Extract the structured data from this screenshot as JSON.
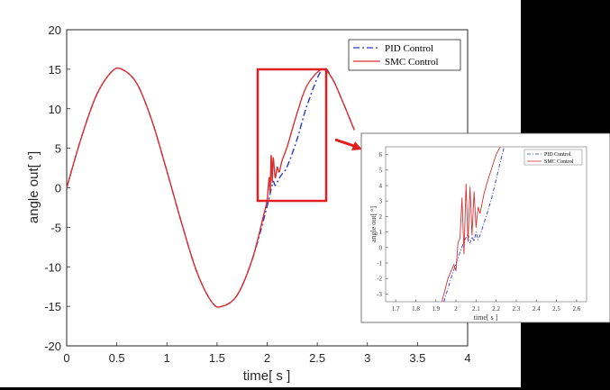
{
  "colors": {
    "pid": "#2b37c9",
    "smc": "#d93030",
    "highlight": "#e02020",
    "axis": "#262626"
  },
  "chart_data": [
    {
      "type": "line",
      "title": "",
      "xlabel": "time[ s ]",
      "ylabel": "angle out[ °]",
      "xlim": [
        0,
        4
      ],
      "ylim": [
        -20,
        20
      ],
      "xticks": [
        "0",
        "0.5",
        "1",
        "1.5",
        "2",
        "2.5",
        "3",
        "3.5",
        "4"
      ],
      "yticks": [
        "-20",
        "-15",
        "-10",
        "-5",
        "0",
        "5",
        "10",
        "15",
        "20"
      ],
      "legend_placement": "top-right",
      "series": [
        {
          "name": "PID Control",
          "style": "dash-dot",
          "color": "#2b37c9",
          "x": [
            0,
            0.15,
            0.3,
            0.45,
            0.55,
            0.7,
            0.85,
            1.0,
            1.15,
            1.3,
            1.45,
            1.55,
            1.7,
            1.85,
            1.98,
            2.04,
            2.06,
            2.08,
            2.1,
            2.12,
            2.14,
            2.2,
            2.3,
            2.4,
            2.55,
            2.65,
            2.75,
            2.87
          ],
          "y": [
            0,
            6.5,
            11.8,
            14.7,
            15,
            13.2,
            8.5,
            2.1,
            -4.6,
            -10.7,
            -14.5,
            -15,
            -13.6,
            -9.1,
            -3.3,
            -0.2,
            0.8,
            0.3,
            0.7,
            1.2,
            1.6,
            2.7,
            6.2,
            10.5,
            15,
            13.8,
            11.0,
            7.3
          ]
        },
        {
          "name": "SMC Control",
          "style": "solid",
          "color": "#d93030",
          "x": [
            0,
            0.15,
            0.3,
            0.45,
            0.55,
            0.7,
            0.85,
            1.0,
            1.15,
            1.3,
            1.45,
            1.55,
            1.7,
            1.85,
            1.97,
            2.0,
            2.02,
            2.03,
            2.04,
            2.05,
            2.06,
            2.08,
            2.1,
            2.12,
            2.15,
            2.2,
            2.3,
            2.4,
            2.55,
            2.65,
            2.75,
            2.87
          ],
          "y": [
            0,
            6.5,
            11.8,
            14.7,
            15,
            13.2,
            8.5,
            2.1,
            -4.6,
            -10.7,
            -14.5,
            -15,
            -13.6,
            -9.1,
            -3.2,
            -1.5,
            1.3,
            -0.5,
            4.1,
            0.7,
            3.8,
            1.3,
            2.6,
            2.0,
            3.5,
            5.2,
            9.5,
            13.0,
            15,
            13.8,
            11.0,
            7.3
          ]
        }
      ]
    },
    {
      "type": "line",
      "title": "",
      "xlabel": "time[ s ]",
      "ylabel": "angle out[ °]",
      "xlim": [
        1.65,
        2.65
      ],
      "ylim": [
        -3.5,
        6.5
      ],
      "xticks": [
        "1.7",
        "1.8",
        "1.9",
        "2",
        "2.1",
        "2.2",
        "2.3",
        "2.4",
        "2.5",
        "2.6"
      ],
      "yticks": [
        "-3",
        "-2",
        "-1",
        "0",
        "1",
        "2",
        "3",
        "4",
        "5",
        "6"
      ],
      "legend_placement": "top-right",
      "series": [
        {
          "name": "PID Control",
          "style": "dash-dot",
          "color": "#2b37c9",
          "x": [
            1.94,
            1.98,
            2.02,
            2.04,
            2.06,
            2.07,
            2.08,
            2.09,
            2.1,
            2.11,
            2.12,
            2.14,
            2.16,
            2.18,
            2.2,
            2.22,
            2.24
          ],
          "y": [
            -3.5,
            -1.8,
            -0.3,
            0.4,
            0.9,
            0.3,
            0.7,
            0.4,
            1.0,
            0.5,
            0.8,
            1.6,
            2.4,
            3.3,
            4.4,
            5.5,
            6.5
          ]
        },
        {
          "name": "SMC Control",
          "style": "solid",
          "color": "#d93030",
          "x": [
            1.93,
            1.96,
            1.99,
            2.0,
            2.01,
            2.02,
            2.03,
            2.04,
            2.05,
            2.06,
            2.07,
            2.08,
            2.09,
            2.1,
            2.11,
            2.12,
            2.14,
            2.16,
            2.18,
            2.2,
            2.22
          ],
          "y": [
            -3.5,
            -2.0,
            -1.1,
            -1.5,
            0.3,
            0.6,
            3.2,
            -0.4,
            4.1,
            0.4,
            3.9,
            0.8,
            3.6,
            1.3,
            2.6,
            2.2,
            3.5,
            4.4,
            5.2,
            6.0,
            6.5
          ]
        }
      ]
    }
  ]
}
